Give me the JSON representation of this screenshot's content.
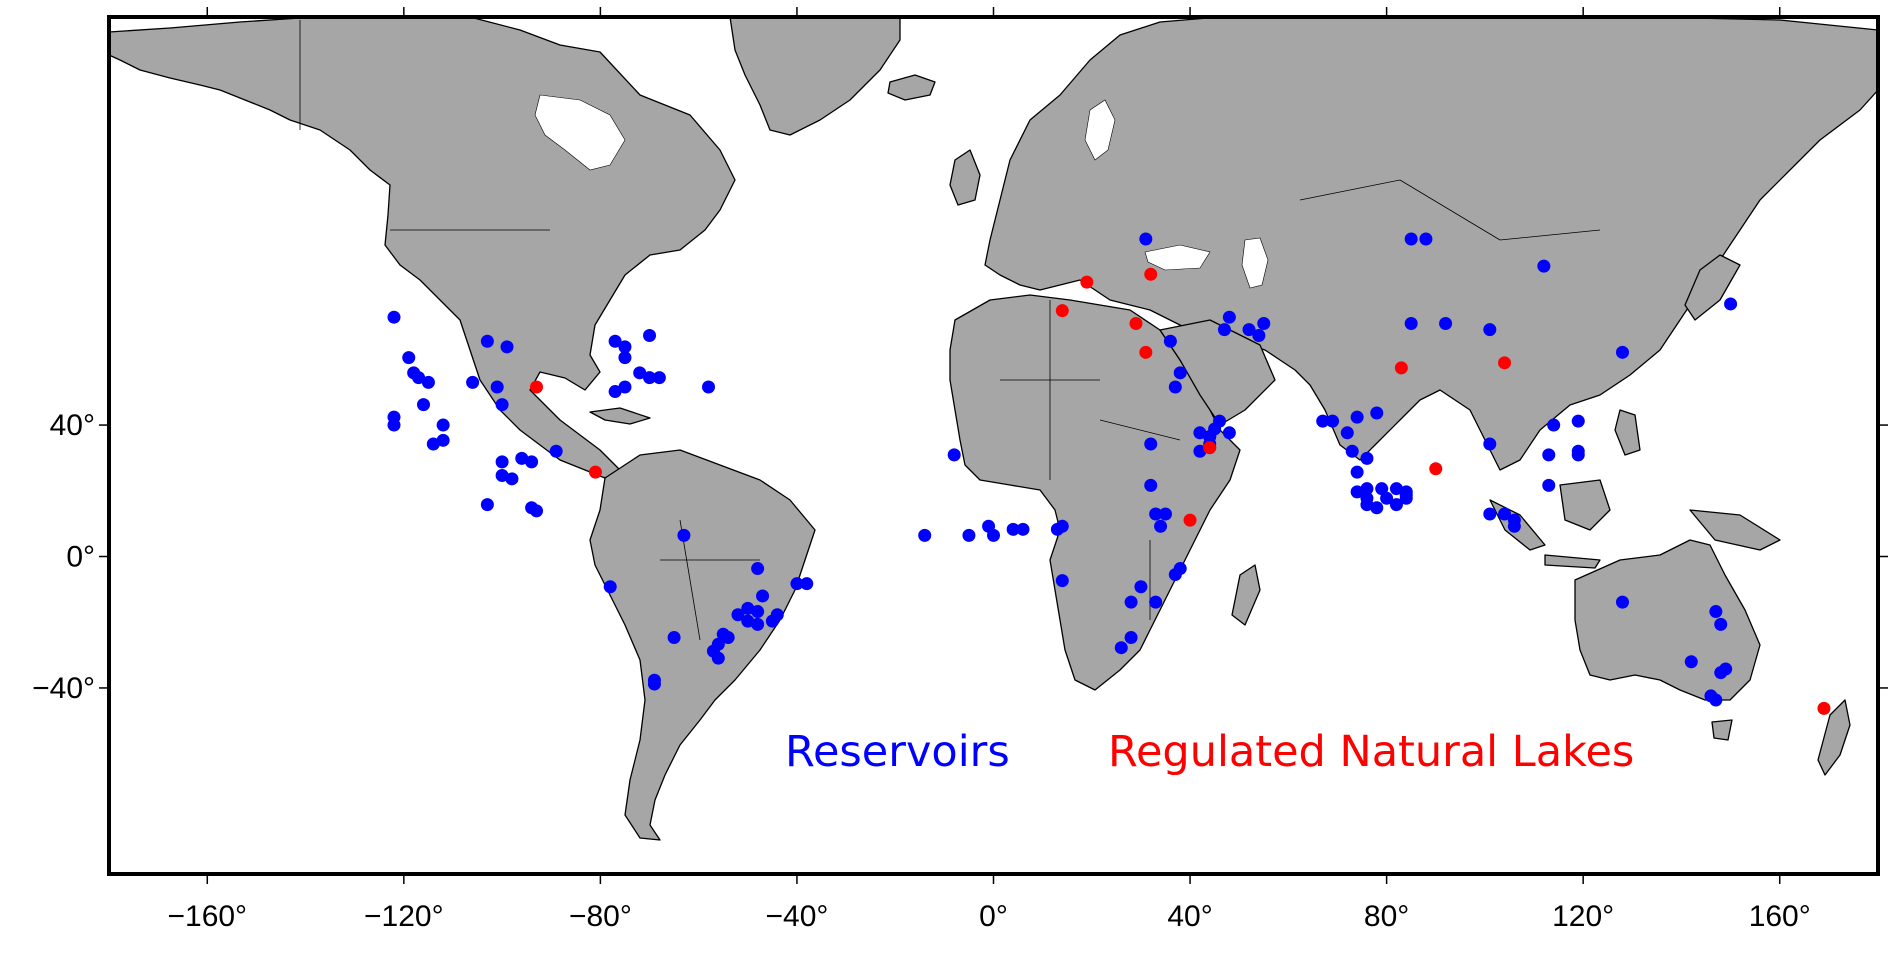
{
  "map": {
    "projection": "mercator",
    "lon_range": [
      -180,
      180
    ],
    "lat_range": [
      -72,
      85
    ],
    "ocean_color": "#ffffff",
    "land_color": "#a6a6a6",
    "x_ticks": [
      {
        "value": -160,
        "label": "−160°"
      },
      {
        "value": -120,
        "label": "−120°"
      },
      {
        "value": -80,
        "label": "−80°"
      },
      {
        "value": -40,
        "label": "−40°"
      },
      {
        "value": 0,
        "label": "0°"
      },
      {
        "value": 40,
        "label": "40°"
      },
      {
        "value": 80,
        "label": "80°"
      },
      {
        "value": 120,
        "label": "120°"
      },
      {
        "value": 160,
        "label": "160°"
      }
    ],
    "y_ticks": [
      {
        "value": 40,
        "label": "40°"
      },
      {
        "value": 0,
        "label": "0°"
      },
      {
        "value": -40,
        "label": "−40°"
      }
    ]
  },
  "legend": {
    "reservoirs": {
      "label": "Reservoirs",
      "color": "#0000ff"
    },
    "lakes": {
      "label": "Regulated Natural Lakes",
      "color": "#ff0000"
    }
  },
  "reservoirs": [
    [
      -122,
      62
    ],
    [
      -119,
      55
    ],
    [
      -118,
      52
    ],
    [
      -117,
      51
    ],
    [
      -115,
      50
    ],
    [
      -122,
      42
    ],
    [
      -122,
      40
    ],
    [
      -116,
      45
    ],
    [
      -112,
      40
    ],
    [
      -112,
      36
    ],
    [
      -114,
      35
    ],
    [
      -103,
      58
    ],
    [
      -99,
      57
    ],
    [
      -106,
      50
    ],
    [
      -101,
      49
    ],
    [
      -100,
      45
    ],
    [
      -100,
      30
    ],
    [
      -96,
      31
    ],
    [
      -94,
      30
    ],
    [
      -89,
      33
    ],
    [
      -100,
      26
    ],
    [
      -98,
      25
    ],
    [
      -103,
      17
    ],
    [
      -94,
      16
    ],
    [
      -93,
      15
    ],
    [
      -77,
      58
    ],
    [
      -75,
      57
    ],
    [
      -75,
      55
    ],
    [
      -70,
      59
    ],
    [
      -72,
      52
    ],
    [
      -70,
      51
    ],
    [
      -68,
      51
    ],
    [
      -77,
      48
    ],
    [
      -75,
      49
    ],
    [
      -58,
      49
    ],
    [
      -63,
      7
    ],
    [
      -78,
      -10
    ],
    [
      -48,
      -4
    ],
    [
      -47,
      -13
    ],
    [
      -50,
      -17
    ],
    [
      -48,
      -18
    ],
    [
      -52,
      -19
    ],
    [
      -50,
      -21
    ],
    [
      -48,
      -22
    ],
    [
      -44,
      -19
    ],
    [
      -45,
      -21
    ],
    [
      -38,
      -9
    ],
    [
      -40,
      -9
    ],
    [
      -54,
      -26
    ],
    [
      -55,
      -25
    ],
    [
      -56,
      -28
    ],
    [
      -57,
      -30
    ],
    [
      -56,
      -32
    ],
    [
      -65,
      -26
    ],
    [
      -69,
      -38
    ],
    [
      -69,
      -39
    ],
    [
      -8,
      32
    ],
    [
      -14,
      7
    ],
    [
      -5,
      7
    ],
    [
      -1,
      10
    ],
    [
      0,
      7
    ],
    [
      4,
      9
    ],
    [
      6,
      9
    ],
    [
      13,
      9
    ],
    [
      14,
      10
    ],
    [
      14,
      -8
    ],
    [
      32,
      23
    ],
    [
      33,
      14
    ],
    [
      35,
      14
    ],
    [
      34,
      10
    ],
    [
      30,
      -10
    ],
    [
      28,
      -15
    ],
    [
      33,
      -15
    ],
    [
      38,
      -4
    ],
    [
      37,
      -6
    ],
    [
      28,
      -26
    ],
    [
      26,
      -29
    ],
    [
      31,
      72
    ],
    [
      32,
      35
    ],
    [
      38,
      52
    ],
    [
      37,
      49
    ],
    [
      36,
      58
    ],
    [
      48,
      62
    ],
    [
      47,
      60
    ],
    [
      54,
      59
    ],
    [
      52,
      60
    ],
    [
      55,
      61
    ],
    [
      44,
      37
    ],
    [
      42,
      38
    ],
    [
      44,
      37
    ],
    [
      44,
      35
    ],
    [
      44,
      34
    ],
    [
      48,
      38
    ],
    [
      45,
      39
    ],
    [
      46,
      41
    ],
    [
      42,
      33
    ],
    [
      67,
      41
    ],
    [
      69,
      41
    ],
    [
      72,
      38
    ],
    [
      74,
      42
    ],
    [
      78,
      43
    ],
    [
      73,
      33
    ],
    [
      76,
      31
    ],
    [
      74,
      27
    ],
    [
      76,
      22
    ],
    [
      79,
      22
    ],
    [
      80,
      19
    ],
    [
      74,
      21
    ],
    [
      76,
      17
    ],
    [
      76,
      19
    ],
    [
      78,
      16
    ],
    [
      82,
      22
    ],
    [
      84,
      21
    ],
    [
      84,
      19
    ],
    [
      84,
      20
    ],
    [
      82,
      17
    ],
    [
      85,
      61
    ],
    [
      85,
      72
    ],
    [
      88,
      72
    ],
    [
      92,
      61
    ],
    [
      101,
      60
    ],
    [
      112,
      69
    ],
    [
      128,
      56
    ],
    [
      150,
      64
    ],
    [
      101,
      35
    ],
    [
      113,
      32
    ],
    [
      113,
      23
    ],
    [
      114,
      40
    ],
    [
      119,
      41
    ],
    [
      119,
      32
    ],
    [
      119,
      33
    ],
    [
      101,
      14
    ],
    [
      104,
      14
    ],
    [
      106,
      12
    ],
    [
      106,
      10
    ],
    [
      128,
      -15
    ],
    [
      147,
      -18
    ],
    [
      148,
      -22
    ],
    [
      142,
      -33
    ],
    [
      148,
      -36
    ],
    [
      149,
      -35
    ],
    [
      146,
      -42
    ],
    [
      147,
      -43
    ]
  ],
  "lakes": [
    [
      19,
      67
    ],
    [
      32,
      68
    ],
    [
      14,
      63
    ],
    [
      29,
      61
    ],
    [
      31,
      56
    ],
    [
      -93,
      49
    ],
    [
      -81,
      27
    ],
    [
      83,
      53
    ],
    [
      104,
      54
    ],
    [
      90,
      28
    ],
    [
      44,
      34
    ],
    [
      40,
      12
    ],
    [
      169,
      -45
    ]
  ]
}
